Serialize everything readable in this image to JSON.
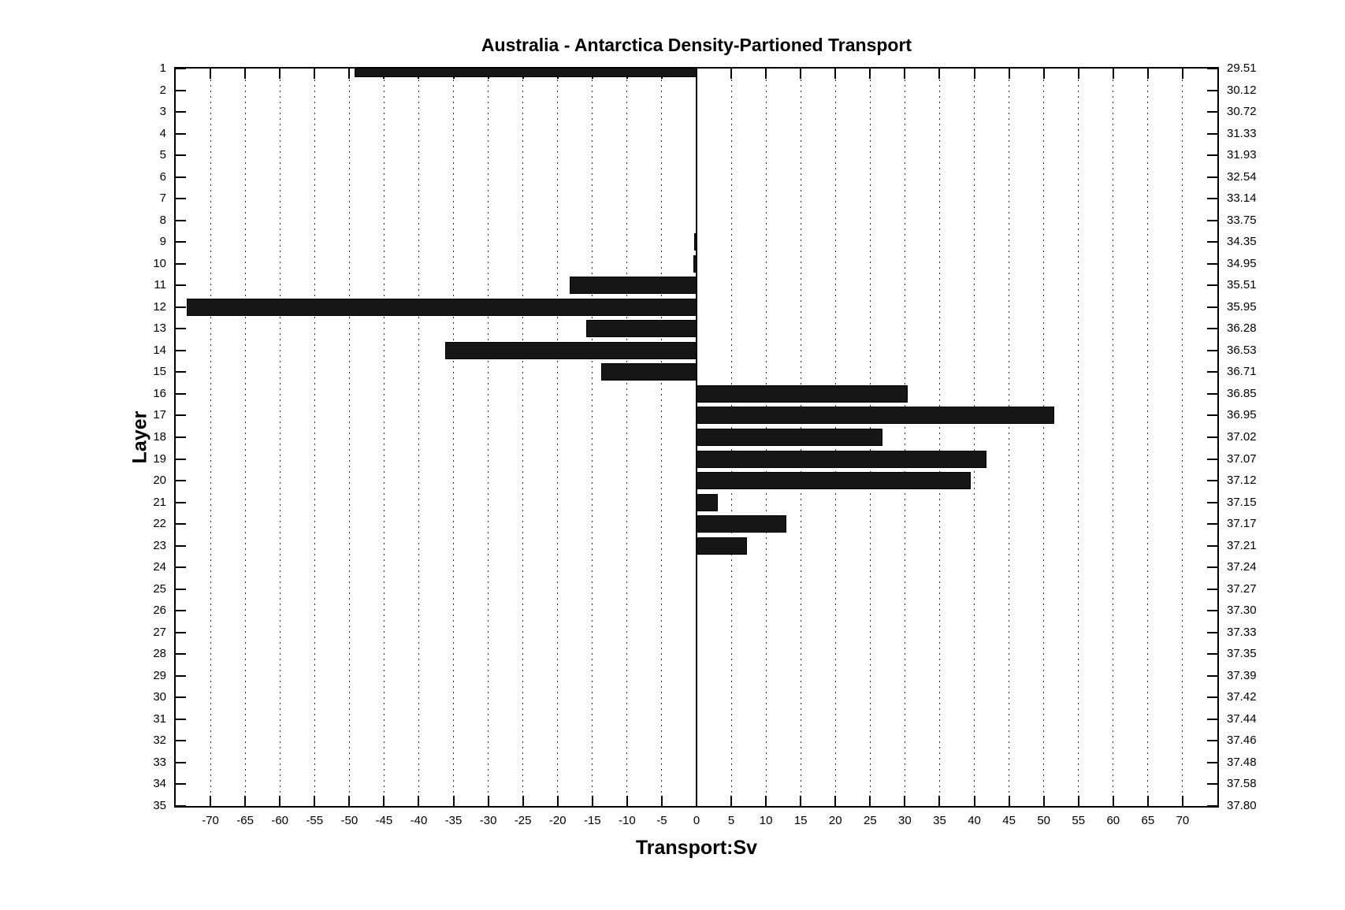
{
  "chart_data": {
    "type": "bar",
    "orientation": "horizontal",
    "title": "Australia - Antarctica Density-Partioned Transport",
    "xlabel": "Transport:Sv",
    "ylabel": "Layer",
    "xlim": [
      -75,
      75
    ],
    "x_ticks": [
      -70,
      -65,
      -60,
      -55,
      -50,
      -45,
      -40,
      -35,
      -30,
      -25,
      -20,
      -15,
      -10,
      -5,
      0,
      5,
      10,
      15,
      20,
      25,
      30,
      35,
      40,
      45,
      50,
      55,
      60,
      65,
      70
    ],
    "grid": "x-dotted",
    "zero_line": true,
    "bar_color": "#161616",
    "categories": [
      1,
      2,
      3,
      4,
      5,
      6,
      7,
      8,
      9,
      10,
      11,
      12,
      13,
      14,
      15,
      16,
      17,
      18,
      19,
      20,
      21,
      22,
      23,
      24,
      25,
      26,
      27,
      28,
      29,
      30,
      31,
      32,
      33,
      34,
      35
    ],
    "values": [
      -49.3,
      0,
      0,
      0,
      0,
      0,
      0,
      0,
      -0.3,
      -0.4,
      -18.3,
      -73.4,
      -15.9,
      -36.2,
      -13.7,
      30.4,
      51.5,
      26.8,
      41.8,
      39.5,
      3.1,
      12.9,
      7.3,
      0,
      0,
      0,
      0,
      0,
      0,
      0,
      0,
      0,
      0,
      0,
      0
    ],
    "right_axis_labels": [
      "29.51",
      "30.12",
      "30.72",
      "31.33",
      "31.93",
      "32.54",
      "33.14",
      "33.75",
      "34.35",
      "34.95",
      "35.51",
      "35.95",
      "36.28",
      "36.53",
      "36.71",
      "36.85",
      "36.95",
      "37.02",
      "37.07",
      "37.12",
      "37.15",
      "37.17",
      "37.21",
      "37.24",
      "37.27",
      "37.30",
      "37.33",
      "37.35",
      "37.39",
      "37.42",
      "37.44",
      "37.46",
      "37.48",
      "37.58",
      "37.80"
    ],
    "units": "Sv"
  }
}
